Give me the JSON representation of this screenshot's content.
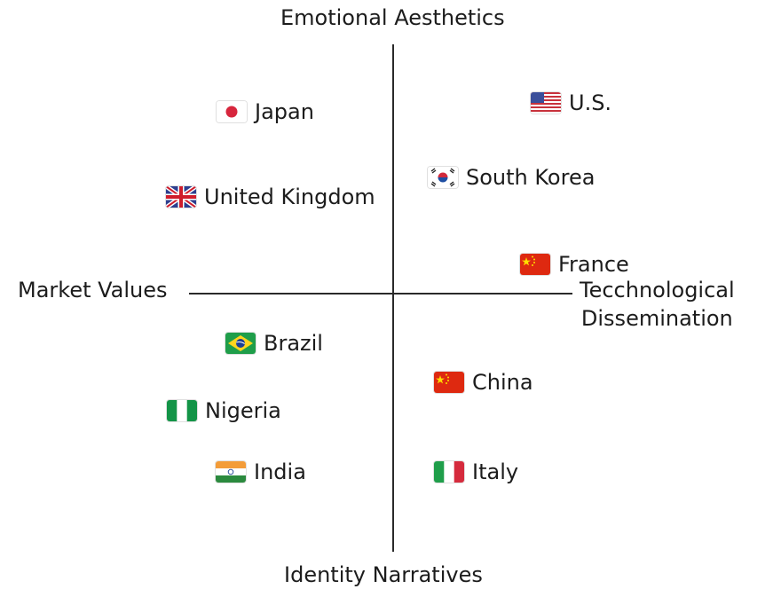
{
  "axes": {
    "top": "Emotional Aesthetics",
    "bottom": "Identity Narratives",
    "left": "Market Values",
    "right_line1": "Tecchnological",
    "right_line2": "Dissemination"
  },
  "countries": [
    {
      "key": "japan",
      "label": "Japan",
      "flag": "japan-flag-icon"
    },
    {
      "key": "us",
      "label": "U.S.",
      "flag": "us-flag-icon"
    },
    {
      "key": "south_korea",
      "label": "South Korea",
      "flag": "south-korea-flag-icon"
    },
    {
      "key": "uk",
      "label": "United Kingdom",
      "flag": "uk-flag-icon"
    },
    {
      "key": "france",
      "label": "France",
      "flag": "china-style-flag-icon"
    },
    {
      "key": "brazil",
      "label": "Brazil",
      "flag": "brazil-flag-icon"
    },
    {
      "key": "china",
      "label": "China",
      "flag": "china-flag-icon"
    },
    {
      "key": "nigeria",
      "label": "Nigeria",
      "flag": "nigeria-flag-icon"
    },
    {
      "key": "india",
      "label": "India",
      "flag": "india-flag-icon"
    },
    {
      "key": "italy",
      "label": "Italy",
      "flag": "italy-flag-icon"
    }
  ],
  "colors": {
    "axis": "#2a2a2a",
    "text": "#1c1c1c",
    "japan_red": "#d7263d",
    "china_red": "#de2910",
    "china_star": "#ffde00",
    "brazil_green": "#1f9e4a",
    "brazil_yellow": "#ffd51e",
    "brazil_blue": "#1b3f94",
    "nigeria_green": "#139447",
    "india_saffron": "#f39c39",
    "india_green": "#2b8a3e",
    "italy_green": "#1f9e4a",
    "italy_red": "#d52b3d",
    "us_red": "#c8323c",
    "us_blue": "#3b4f9a",
    "uk_blue": "#2d3f8f",
    "uk_red": "#cf1c2b",
    "korea_red": "#d22a3c",
    "korea_blue": "#1f4fa3"
  }
}
